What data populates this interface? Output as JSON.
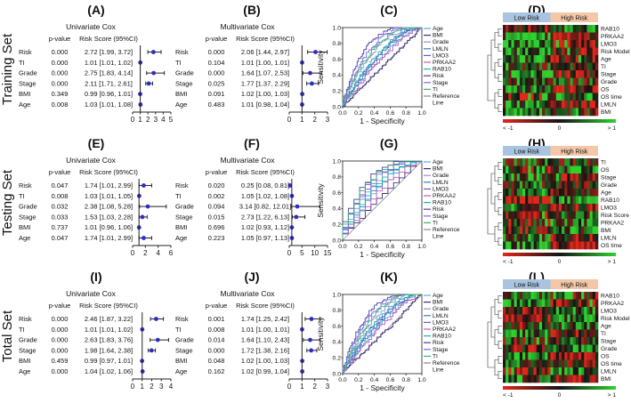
{
  "rows": [
    {
      "set_label": "Training Set",
      "panels": [
        "(A)",
        "(B)",
        "(C)",
        "(D)"
      ],
      "uni": {
        "title": "Univariate Cox",
        "col_p": "p-value",
        "col_rs": "Risk Score (95%CI)",
        "xticks": [
          0,
          1,
          2,
          3,
          4,
          5
        ],
        "xmax": 5,
        "rows": [
          {
            "var": "Risk",
            "p": "0.000",
            "txt": "2.72 [1.99, 3.72]",
            "hr": 2.72,
            "lo": 1.99,
            "hi": 3.72
          },
          {
            "var": "TI",
            "p": "0.000",
            "txt": "1.01 [1.01, 1.02]",
            "hr": 1.01,
            "lo": 1.01,
            "hi": 1.02
          },
          {
            "var": "Grade",
            "p": "0.000",
            "txt": "2.75 [1.83, 4.14]",
            "hr": 2.75,
            "lo": 1.83,
            "hi": 4.14
          },
          {
            "var": "Stage",
            "p": "0.000",
            "txt": "2.11 [1.71, 2.61]",
            "hr": 2.11,
            "lo": 1.71,
            "hi": 2.61
          },
          {
            "var": "BMI",
            "p": "0.349",
            "txt": "0.99 [0.96, 1.01]",
            "hr": 0.99,
            "lo": 0.96,
            "hi": 1.01
          },
          {
            "var": "Age",
            "p": "0.008",
            "txt": "1.03 [1.01, 1.08]",
            "hr": 1.03,
            "lo": 1.01,
            "hi": 1.08
          }
        ]
      },
      "multi": {
        "title": "Multivariate Cox",
        "col_p": "p-value",
        "col_rs": "Risk Score (95%CI)",
        "xticks": [
          0,
          1,
          2,
          3
        ],
        "xmax": 3,
        "rows": [
          {
            "var": "Risk",
            "p": "0.000",
            "txt": "2.06 [1.44, 2.97]",
            "hr": 2.06,
            "lo": 1.44,
            "hi": 2.97
          },
          {
            "var": "TI",
            "p": "0.104",
            "txt": "1.01 [1.00, 1.01]",
            "hr": 1.01,
            "lo": 1.0,
            "hi": 1.01
          },
          {
            "var": "Grade",
            "p": "0.000",
            "txt": "1.64 [1.07, 2.53]",
            "hr": 1.64,
            "lo": 1.07,
            "hi": 2.53
          },
          {
            "var": "Stage",
            "p": "0.025",
            "txt": "1.77 [1.37, 2.29]",
            "hr": 1.77,
            "lo": 1.37,
            "hi": 2.29
          },
          {
            "var": "BMI",
            "p": "0.091",
            "txt": "1.02 [1.00, 1.03]",
            "hr": 1.02,
            "lo": 1.0,
            "hi": 1.03
          },
          {
            "var": "Age",
            "p": "0.483",
            "txt": "1.01 [0.98, 1.04]",
            "hr": 1.01,
            "lo": 0.98,
            "hi": 1.04
          }
        ]
      },
      "roc": {
        "ylabel": "Sensitivity",
        "xlabel": "1 - Specificity",
        "ticks": [
          "0.0",
          "0.2",
          "0.4",
          "0.6",
          "0.8",
          "1.0"
        ],
        "legend": [
          "Age",
          "BMI",
          "Grade",
          "LMLN",
          "LMO3",
          "PRKAA2",
          "RAB10",
          "Risk",
          "Stage",
          "TI",
          "Reference",
          "Line"
        ],
        "steps": 60,
        "series": [
          {
            "name": "Age",
            "p": 1.4,
            "color": "#5aa9e6"
          },
          {
            "name": "BMI",
            "p": 0.95,
            "color": "#3b2e7e"
          },
          {
            "name": "Grade",
            "p": 2.3,
            "color": "#9b8ee0"
          },
          {
            "name": "LMLN",
            "p": 1.6,
            "color": "#2f7fc1"
          },
          {
            "name": "LMO3",
            "p": 1.7,
            "color": "#6a5acd"
          },
          {
            "name": "PRKAA2",
            "p": 1.3,
            "color": "#c45ab3"
          },
          {
            "name": "RAB10",
            "p": 1.8,
            "color": "#20b2aa"
          },
          {
            "name": "Risk",
            "p": 3.6,
            "color": "#4b3fa0"
          },
          {
            "name": "Stage",
            "p": 2.9,
            "color": "#7b68ee"
          },
          {
            "name": "TI",
            "p": 2.5,
            "color": "#3cb371"
          }
        ]
      },
      "heatmap": {
        "group_low": "Low Risk",
        "group_high": "High Risk",
        "rows": [
          "RAB10",
          "PRKAA2",
          "LMO3",
          "Risk Model",
          "Age",
          "TI",
          "Stage",
          "Grade",
          "OS",
          "OS time",
          "LMLN",
          "BMI"
        ],
        "cols": 34,
        "legend": [
          "< -1",
          "0",
          "> 1"
        ]
      }
    },
    {
      "set_label": "Testing Set",
      "panels": [
        "(E)",
        "(F)",
        "(G)",
        "(H)"
      ],
      "uni": {
        "title": "Univariate Cox",
        "col_p": "p-value",
        "col_rs": "Risk Score (95%CI)",
        "xticks": [
          0,
          2,
          4,
          6
        ],
        "xmax": 6,
        "rows": [
          {
            "var": "Risk",
            "p": "0.047",
            "txt": "1.74 [1.01, 2.99]",
            "hr": 1.74,
            "lo": 1.01,
            "hi": 2.99
          },
          {
            "var": "TI",
            "p": "0.008",
            "txt": "1.03 [1.01, 1.05]",
            "hr": 1.03,
            "lo": 1.01,
            "hi": 1.05
          },
          {
            "var": "Grade",
            "p": "0.032",
            "txt": "2.38 [1.08, 5.28]",
            "hr": 2.38,
            "lo": 1.08,
            "hi": 5.28
          },
          {
            "var": "Stage",
            "p": "0.033",
            "txt": "1.53 [1.03, 2.28]",
            "hr": 1.53,
            "lo": 1.03,
            "hi": 2.28
          },
          {
            "var": "BMI",
            "p": "0.737",
            "txt": "1.01 [0.96, 1.06]",
            "hr": 1.01,
            "lo": 0.96,
            "hi": 1.06
          },
          {
            "var": "Age",
            "p": "0.047",
            "txt": "1.74 [1.01, 2.99]",
            "hr": 1.74,
            "lo": 1.01,
            "hi": 2.99
          }
        ]
      },
      "multi": {
        "title": "Multivariate Cox",
        "col_p": "p-value",
        "col_rs": "Risk Score (95%CI)",
        "xticks": [
          0,
          5,
          10,
          15
        ],
        "xmax": 15,
        "rows": [
          {
            "var": "Risk",
            "p": "0.020",
            "txt": "0.25 [0.08, 0.81]",
            "hr": 0.25,
            "lo": 0.08,
            "hi": 0.81
          },
          {
            "var": "TI",
            "p": "0.002",
            "txt": "1.05 [1.02, 1.08]",
            "hr": 1.05,
            "lo": 1.02,
            "hi": 1.08
          },
          {
            "var": "Grade",
            "p": "0.094",
            "txt": "3.14 [0.82, 12.01]",
            "hr": 3.14,
            "lo": 0.82,
            "hi": 12.01
          },
          {
            "var": "Stage",
            "p": "0.015",
            "txt": "2.73 [1.22, 6.13]",
            "hr": 2.73,
            "lo": 1.22,
            "hi": 6.13
          },
          {
            "var": "BMI",
            "p": "0.696",
            "txt": "1.02 [0.93, 1.12]",
            "hr": 1.02,
            "lo": 0.93,
            "hi": 1.12
          },
          {
            "var": "Age",
            "p": "0.223",
            "txt": "1.05 [0.97, 1.13]",
            "hr": 1.05,
            "lo": 0.97,
            "hi": 1.13
          }
        ]
      },
      "roc": {
        "ylabel": "Sensitivity",
        "xlabel": "1 - Specificity",
        "ticks": [
          "0.0",
          "0.2",
          "0.4",
          "0.6",
          "0.8",
          "1.0"
        ],
        "legend": [
          "Age",
          "BMI",
          "Grade",
          "LMLN",
          "LMO3",
          "PRKAA2",
          "RAB10",
          "Risk",
          "Stage",
          "TI",
          "Reference",
          "Line"
        ],
        "steps": 14,
        "series": [
          {
            "name": "Age",
            "p": 1.5,
            "color": "#5aa9e6"
          },
          {
            "name": "BMI",
            "p": 1.0,
            "color": "#3b2e7e"
          },
          {
            "name": "Grade",
            "p": 2.1,
            "color": "#9b8ee0"
          },
          {
            "name": "LMLN",
            "p": 1.7,
            "color": "#2f7fc1"
          },
          {
            "name": "LMO3",
            "p": 2.6,
            "color": "#6a5acd"
          },
          {
            "name": "PRKAA2",
            "p": 1.3,
            "color": "#c45ab3"
          },
          {
            "name": "RAB10",
            "p": 1.9,
            "color": "#20b2aa"
          },
          {
            "name": "Risk",
            "p": 3.1,
            "color": "#4b3fa0"
          },
          {
            "name": "Stage",
            "p": 2.4,
            "color": "#7b68ee"
          },
          {
            "name": "TI",
            "p": 2.8,
            "color": "#3cb371"
          }
        ]
      },
      "heatmap": {
        "group_low": "Low Risk",
        "group_high": "High Risk",
        "rows": [
          "TI",
          "OS",
          "Stage",
          "Grade",
          "Age",
          "RAB10",
          "LMO3",
          "Risk Score",
          "PRKAA2",
          "BMI",
          "LMLN",
          "OS time"
        ],
        "cols": 34,
        "legend": [
          "< -1",
          "0",
          "> 1"
        ]
      }
    },
    {
      "set_label": "Total Set",
      "panels": [
        "(I)",
        "(J)",
        "(K)",
        "(L)"
      ],
      "uni": {
        "title": "Univariate Cox",
        "col_p": "p-value",
        "col_rs": "Risk Score (95%CI)",
        "xticks": [
          0,
          1,
          2,
          3,
          4
        ],
        "xmax": 4,
        "rows": [
          {
            "var": "Risk",
            "p": "0.000",
            "txt": "2.46 [1.87, 3.22]",
            "hr": 2.46,
            "lo": 1.87,
            "hi": 3.22
          },
          {
            "var": "TI",
            "p": "0.000",
            "txt": "1.01 [1.01, 1.02]",
            "hr": 1.01,
            "lo": 1.01,
            "hi": 1.02
          },
          {
            "var": "Grade",
            "p": "0.000",
            "txt": "2.63 [1.83, 3.76]",
            "hr": 2.63,
            "lo": 1.83,
            "hi": 3.76
          },
          {
            "var": "Stage",
            "p": "0.000",
            "txt": "1.98 [1.64, 2.38]",
            "hr": 1.98,
            "lo": 1.64,
            "hi": 2.38
          },
          {
            "var": "BMI",
            "p": "0.459",
            "txt": "0.99 [0.97, 1.01]",
            "hr": 0.99,
            "lo": 0.97,
            "hi": 1.01
          },
          {
            "var": "Age",
            "p": "0.000",
            "txt": "1.04 [1.02, 1.06]",
            "hr": 1.04,
            "lo": 1.02,
            "hi": 1.06
          }
        ]
      },
      "multi": {
        "title": "Multivariate Cox",
        "col_p": "p-value",
        "col_rs": "Risk Score (95%CI)",
        "xticks": [
          0,
          1,
          2,
          3
        ],
        "xmax": 3,
        "rows": [
          {
            "var": "Risk",
            "p": "0.001",
            "txt": "1.74 [1.25, 2.42]",
            "hr": 1.74,
            "lo": 1.25,
            "hi": 2.42
          },
          {
            "var": "TI",
            "p": "0.008",
            "txt": "1.01 [1.00, 1.01]",
            "hr": 1.01,
            "lo": 1.0,
            "hi": 1.01
          },
          {
            "var": "Grade",
            "p": "0.014",
            "txt": "1.64 [1.10, 2.43]",
            "hr": 1.64,
            "lo": 1.1,
            "hi": 2.43
          },
          {
            "var": "Stage",
            "p": "0.000",
            "txt": "1.72 [1.38, 2.16]",
            "hr": 1.72,
            "lo": 1.38,
            "hi": 2.16
          },
          {
            "var": "BMI",
            "p": "0.048",
            "txt": "1.02 [1.00, 1.03]",
            "hr": 1.02,
            "lo": 1.0,
            "hi": 1.03
          },
          {
            "var": "Age",
            "p": "0.162",
            "txt": "1.02 [0.99, 1.04]",
            "hr": 1.02,
            "lo": 0.99,
            "hi": 1.04
          }
        ]
      },
      "roc": {
        "ylabel": "Sensitivity",
        "xlabel": "1 - Specificity",
        "ticks": [
          "0.0",
          "0.2",
          "0.4",
          "0.6",
          "0.8",
          "1.0"
        ],
        "legend": [
          "Age",
          "BMI",
          "Grade",
          "LMLN",
          "LMO3",
          "PRKAA2",
          "RAB10",
          "Risk",
          "Stage",
          "TI",
          "Reference",
          "Line"
        ],
        "steps": 60,
        "series": [
          {
            "name": "Age",
            "p": 1.4,
            "color": "#5aa9e6"
          },
          {
            "name": "BMI",
            "p": 0.95,
            "color": "#3b2e7e"
          },
          {
            "name": "Grade",
            "p": 2.2,
            "color": "#9b8ee0"
          },
          {
            "name": "LMLN",
            "p": 1.6,
            "color": "#2f7fc1"
          },
          {
            "name": "LMO3",
            "p": 1.75,
            "color": "#6a5acd"
          },
          {
            "name": "PRKAA2",
            "p": 1.3,
            "color": "#c45ab3"
          },
          {
            "name": "RAB10",
            "p": 1.85,
            "color": "#20b2aa"
          },
          {
            "name": "Risk",
            "p": 3.4,
            "color": "#4b3fa0"
          },
          {
            "name": "Stage",
            "p": 2.8,
            "color": "#7b68ee"
          },
          {
            "name": "TI",
            "p": 2.5,
            "color": "#3cb371"
          }
        ]
      },
      "heatmap": {
        "group_low": "Low Risk",
        "group_high": "High Risk",
        "rows": [
          "RAB10",
          "PRKAA2",
          "LMO3",
          "Risk Model",
          "Age",
          "TI",
          "Stage",
          "Grade",
          "OS",
          "OS time",
          "LMLN",
          "BMI"
        ],
        "cols": 34,
        "legend": [
          "< -1",
          "0",
          "> 1"
        ]
      }
    }
  ],
  "colors": {
    "marker": "#2b2dc9",
    "text": "#111111",
    "low_bar": "#a9c3e0",
    "high_bar": "#f3c7a8",
    "hm_neg": "#e3261b",
    "hm_mid": "#141414",
    "hm_pos": "#2fd12f"
  }
}
